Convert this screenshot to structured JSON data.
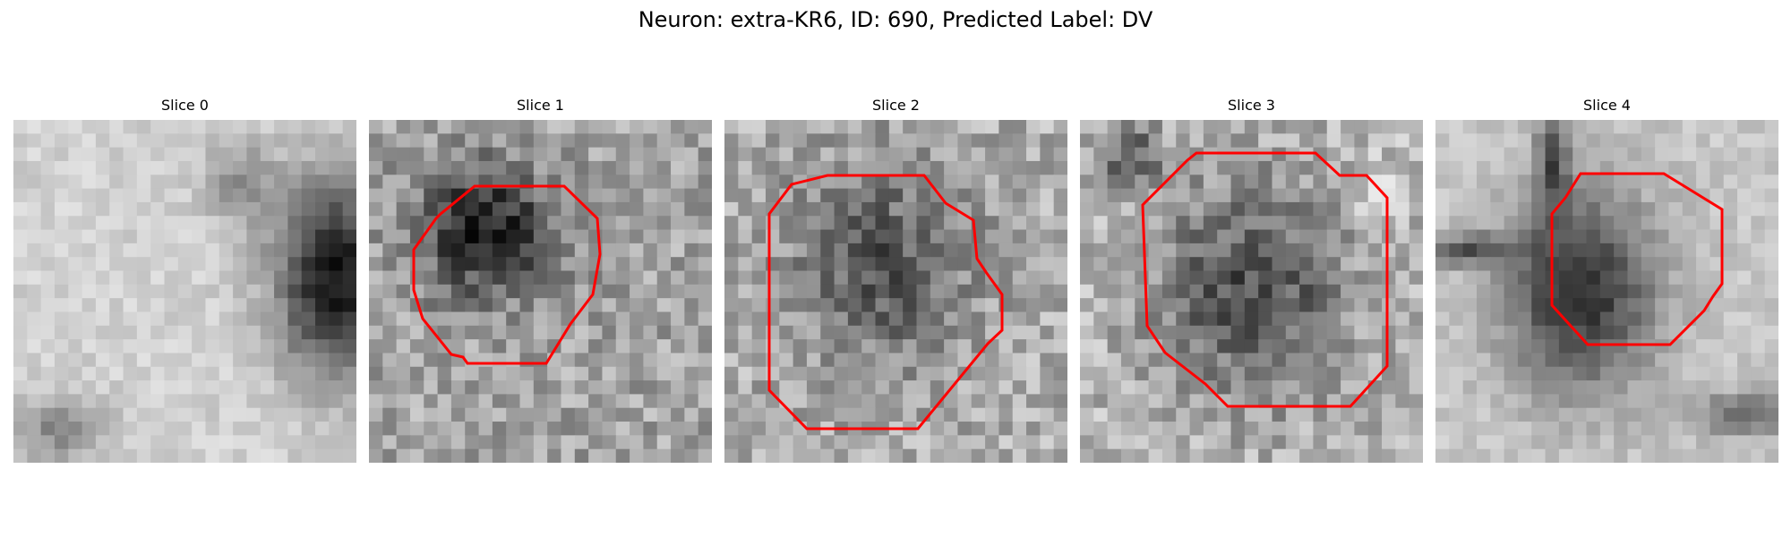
{
  "figure": {
    "title": "Neuron: extra-KR6, ID: 690, Predicted Label: DV",
    "outline_color": "#ff0000"
  },
  "slices": [
    {
      "title": "Slice 0",
      "has_outline": false,
      "dark_blob": "right"
    },
    {
      "title": "Slice 1",
      "has_outline": true,
      "dark_blob": "upper-left-center"
    },
    {
      "title": "Slice 2",
      "has_outline": true,
      "dark_blob": "center"
    },
    {
      "title": "Slice 3",
      "has_outline": true,
      "dark_blob": "center"
    },
    {
      "title": "Slice 4",
      "has_outline": true,
      "dark_blob": "center-left"
    }
  ]
}
